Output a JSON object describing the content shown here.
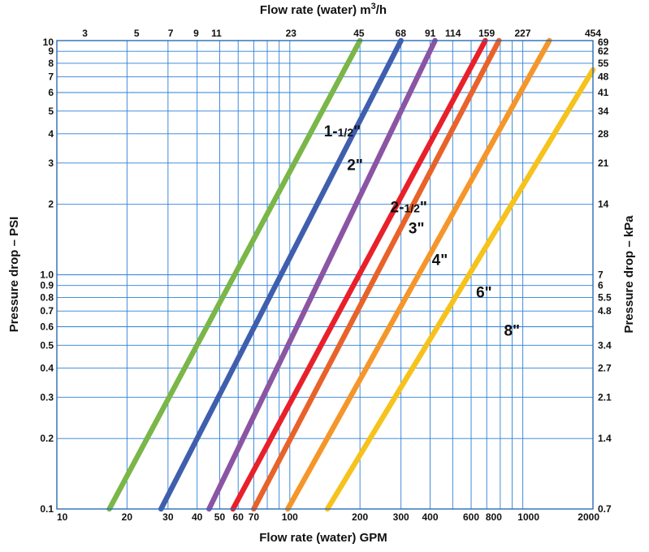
{
  "chart_data": {
    "type": "line",
    "title": "",
    "xlabel": "Flow rate (water) GPM",
    "x2label_prefix": "Flow rate (water) m",
    "x2label_sup": "3",
    "x2label_suffix": "/h",
    "ylabel": "Pressure drop – PSI",
    "y2label": "Pressure drop – kPa",
    "x_scale": "log",
    "y_scale": "log",
    "xlim": [
      10,
      2000
    ],
    "ylim": [
      0.1,
      10
    ],
    "grid": true,
    "line_color": "#2c7fd6",
    "border_color": "#2a6bb6",
    "x_ticks": [
      {
        "value": 10,
        "label": "10"
      },
      {
        "value": 20,
        "label": "20"
      },
      {
        "value": 30,
        "label": "30"
      },
      {
        "value": 40,
        "label": "40"
      },
      {
        "value": 50,
        "label": "50"
      },
      {
        "value": 60,
        "label": "60"
      },
      {
        "value": 70,
        "label": "70"
      },
      {
        "value": 100,
        "label": "100"
      },
      {
        "value": 200,
        "label": "200"
      },
      {
        "value": 300,
        "label": "300"
      },
      {
        "value": 400,
        "label": "400"
      },
      {
        "value": 600,
        "label": "600"
      },
      {
        "value": 800,
        "label": "800"
      },
      {
        "value": 1000,
        "label": "1000"
      },
      {
        "value": 2000,
        "label": "2000"
      }
    ],
    "x_minor": [
      80,
      90,
      500,
      700,
      900
    ],
    "x2_ticks": [
      {
        "value": 13.2,
        "label": "3"
      },
      {
        "value": 22,
        "label": "5"
      },
      {
        "value": 30.8,
        "label": "7"
      },
      {
        "value": 39.6,
        "label": "9"
      },
      {
        "value": 48.4,
        "label": "11"
      },
      {
        "value": 101.2,
        "label": "23"
      },
      {
        "value": 198,
        "label": "45"
      },
      {
        "value": 299.2,
        "label": "68"
      },
      {
        "value": 400.4,
        "label": "91"
      },
      {
        "value": 501.6,
        "label": "114"
      },
      {
        "value": 699.6,
        "label": "159"
      },
      {
        "value": 998.8,
        "label": "227"
      },
      {
        "value": 1997.6,
        "label": "454"
      }
    ],
    "y_ticks": [
      {
        "value": 0.1,
        "label": "0.1"
      },
      {
        "value": 0.2,
        "label": "0.2"
      },
      {
        "value": 0.3,
        "label": "0.3"
      },
      {
        "value": 0.4,
        "label": "0.4"
      },
      {
        "value": 0.5,
        "label": "0.5"
      },
      {
        "value": 0.6,
        "label": "0.6"
      },
      {
        "value": 0.7,
        "label": "0.7"
      },
      {
        "value": 0.8,
        "label": "0.8"
      },
      {
        "value": 0.9,
        "label": "0.9"
      },
      {
        "value": 1.0,
        "label": "1.0"
      },
      {
        "value": 2,
        "label": "2"
      },
      {
        "value": 3,
        "label": "3"
      },
      {
        "value": 4,
        "label": "4"
      },
      {
        "value": 5,
        "label": "5"
      },
      {
        "value": 6,
        "label": "6"
      },
      {
        "value": 7,
        "label": "7"
      },
      {
        "value": 8,
        "label": "8"
      },
      {
        "value": 9,
        "label": "9"
      },
      {
        "value": 10,
        "label": "10"
      }
    ],
    "y2_ticks": [
      {
        "value": 0.1,
        "label": "0.7"
      },
      {
        "value": 0.2,
        "label": "1.4"
      },
      {
        "value": 0.3,
        "label": "2.1"
      },
      {
        "value": 0.4,
        "label": "2.7"
      },
      {
        "value": 0.5,
        "label": "3.4"
      },
      {
        "value": 0.7,
        "label": "4.8"
      },
      {
        "value": 0.8,
        "label": "5.5"
      },
      {
        "value": 0.9,
        "label": "6"
      },
      {
        "value": 1.0,
        "label": "7"
      },
      {
        "value": 2,
        "label": "14"
      },
      {
        "value": 3,
        "label": "21"
      },
      {
        "value": 4,
        "label": "28"
      },
      {
        "value": 5,
        "label": "34"
      },
      {
        "value": 6,
        "label": "41"
      },
      {
        "value": 7,
        "label": "48"
      },
      {
        "value": 8,
        "label": "55"
      },
      {
        "value": 9,
        "label": "62"
      },
      {
        "value": 10,
        "label": "69"
      }
    ],
    "series": [
      {
        "name": "1-1/2\"",
        "main": "1-",
        "frac": "1/2",
        "suffix": "\"",
        "color": "#7ab648",
        "points": [
          [
            16.8,
            0.1
          ],
          [
            200,
            10
          ]
        ],
        "label_at": [
          140,
          3.9
        ]
      },
      {
        "name": "2\"",
        "main": "2",
        "frac": "",
        "suffix": "\"",
        "color": "#3f5fae",
        "points": [
          [
            28,
            0.1
          ],
          [
            300,
            10
          ]
        ],
        "label_at": [
          176,
          2.8
        ]
      },
      {
        "name": "2-1/2\"",
        "main": "2-",
        "frac": "1/2",
        "suffix": "\"",
        "color": "#8b55a3",
        "points": [
          [
            45,
            0.1
          ],
          [
            420,
            10
          ]
        ],
        "label_at": [
          270,
          1.85
        ]
      },
      {
        "name": "3\"",
        "main": "3",
        "frac": "",
        "suffix": "\"",
        "color": "#e8202a",
        "points": [
          [
            57,
            0.1
          ],
          [
            690,
            10
          ]
        ],
        "label_at": [
          323,
          1.5
        ]
      },
      {
        "name": "4\"",
        "main": "4",
        "frac": "",
        "suffix": "\"",
        "color": "#e8632a",
        "points": [
          [
            70,
            0.1
          ],
          [
            790,
            10
          ]
        ],
        "label_at": [
          407,
          1.1
        ]
      },
      {
        "name": "6\"",
        "main": "6",
        "frac": "",
        "suffix": "\"",
        "color": "#f5962a",
        "points": [
          [
            98,
            0.1
          ],
          [
            1300,
            10
          ]
        ],
        "label_at": [
          630,
          0.8
        ]
      },
      {
        "name": "8\"",
        "main": "8",
        "frac": "",
        "suffix": "\"",
        "color": "#f6c21c",
        "points": [
          [
            145,
            0.1
          ],
          [
            2000,
            7.5
          ]
        ],
        "label_at": [
          830,
          0.55
        ]
      }
    ]
  }
}
